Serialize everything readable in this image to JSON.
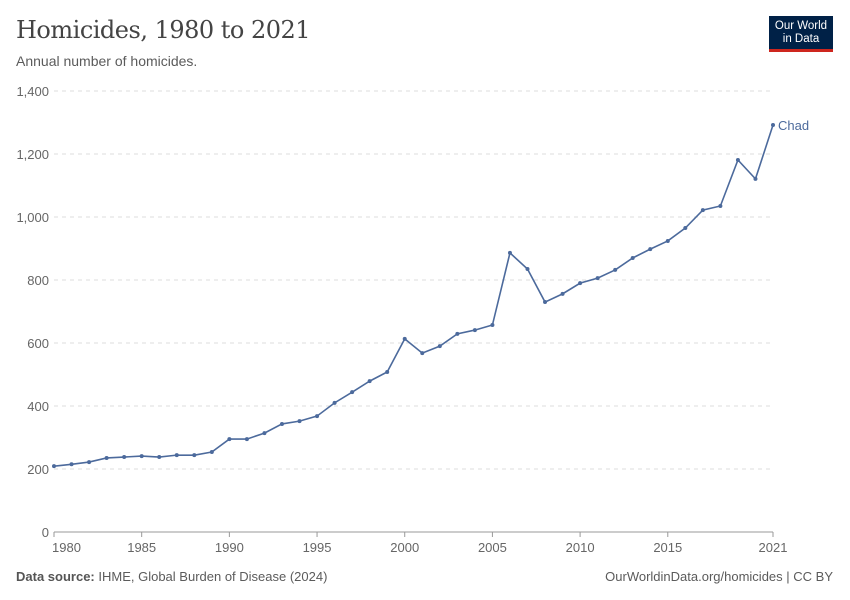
{
  "header": {
    "title": "Homicides, 1980 to 2021",
    "subtitle": "Annual number of homicides.",
    "logo": "Our World in Data"
  },
  "footer": {
    "source_label": "Data source:",
    "source": "IHME, Global Burden of Disease (2024)",
    "link": "OurWorldinData.org/homicides | CC BY"
  },
  "chart_data": {
    "type": "line",
    "title": "Homicides, 1980 to 2021",
    "subtitle": "Annual number of homicides.",
    "xlabel": "",
    "ylabel": "",
    "xlim": [
      1980,
      2021
    ],
    "ylim": [
      0,
      1400
    ],
    "xticks": [
      1980,
      1985,
      1990,
      1995,
      2000,
      2005,
      2010,
      2015,
      2021
    ],
    "yticks": [
      0,
      200,
      400,
      600,
      800,
      1000,
      1200,
      1400
    ],
    "ytick_labels": [
      "0",
      "200",
      "400",
      "600",
      "800",
      "1,000",
      "1,200",
      "1,400"
    ],
    "grid": "horizontal dashed",
    "legend": "end-of-line label",
    "series": [
      {
        "name": "Chad",
        "color": "#4c6a9c",
        "x": [
          1980,
          1981,
          1982,
          1983,
          1984,
          1985,
          1986,
          1987,
          1988,
          1989,
          1990,
          1991,
          1992,
          1993,
          1994,
          1995,
          1996,
          1997,
          1998,
          1999,
          2000,
          2001,
          2002,
          2003,
          2004,
          2005,
          2006,
          2007,
          2008,
          2009,
          2010,
          2011,
          2012,
          2013,
          2014,
          2015,
          2016,
          2017,
          2018,
          2019,
          2020,
          2021
        ],
        "values": [
          209,
          215,
          222,
          235,
          238,
          241,
          238,
          244,
          244,
          254,
          295,
          295,
          314,
          343,
          352,
          368,
          410,
          444,
          479,
          508,
          613,
          568,
          590,
          629,
          641,
          657,
          886,
          835,
          730,
          756,
          790,
          806,
          832,
          870,
          898,
          924,
          965,
          1022,
          1035,
          1181,
          1121,
          1292
        ]
      }
    ]
  }
}
